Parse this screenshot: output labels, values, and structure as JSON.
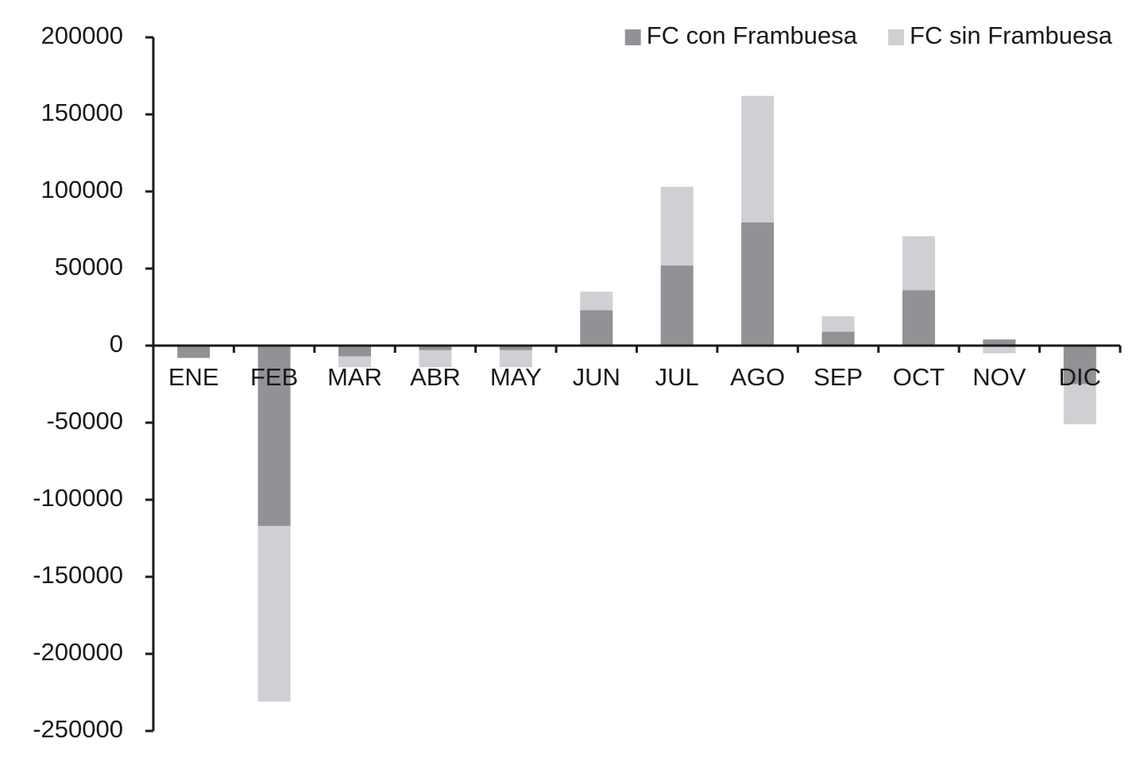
{
  "chart_data": {
    "type": "bar",
    "stacked": true,
    "categories": [
      "ENE",
      "FEB",
      "MAR",
      "ABR",
      "MAY",
      "JUN",
      "JUL",
      "AGO",
      "SEP",
      "OCT",
      "NOV",
      "DIC"
    ],
    "series": [
      {
        "name": "FC con Frambuesa",
        "color": "#929196",
        "values": [
          -8000,
          -117000,
          -7000,
          -3000,
          -3000,
          23000,
          52000,
          80000,
          9000,
          36000,
          4000,
          -25000
        ]
      },
      {
        "name": "FC sin Frambuesa",
        "color": "#d0d0d4",
        "values": [
          0,
          -114000,
          -7000,
          -11000,
          -11000,
          12000,
          51000,
          82000,
          10000,
          35000,
          -5000,
          -26000
        ]
      }
    ],
    "ylim": [
      -250000,
      200000
    ],
    "yticks": [
      -250000,
      -200000,
      -150000,
      -100000,
      -50000,
      0,
      50000,
      100000,
      150000,
      200000
    ],
    "legend": "top-right"
  }
}
